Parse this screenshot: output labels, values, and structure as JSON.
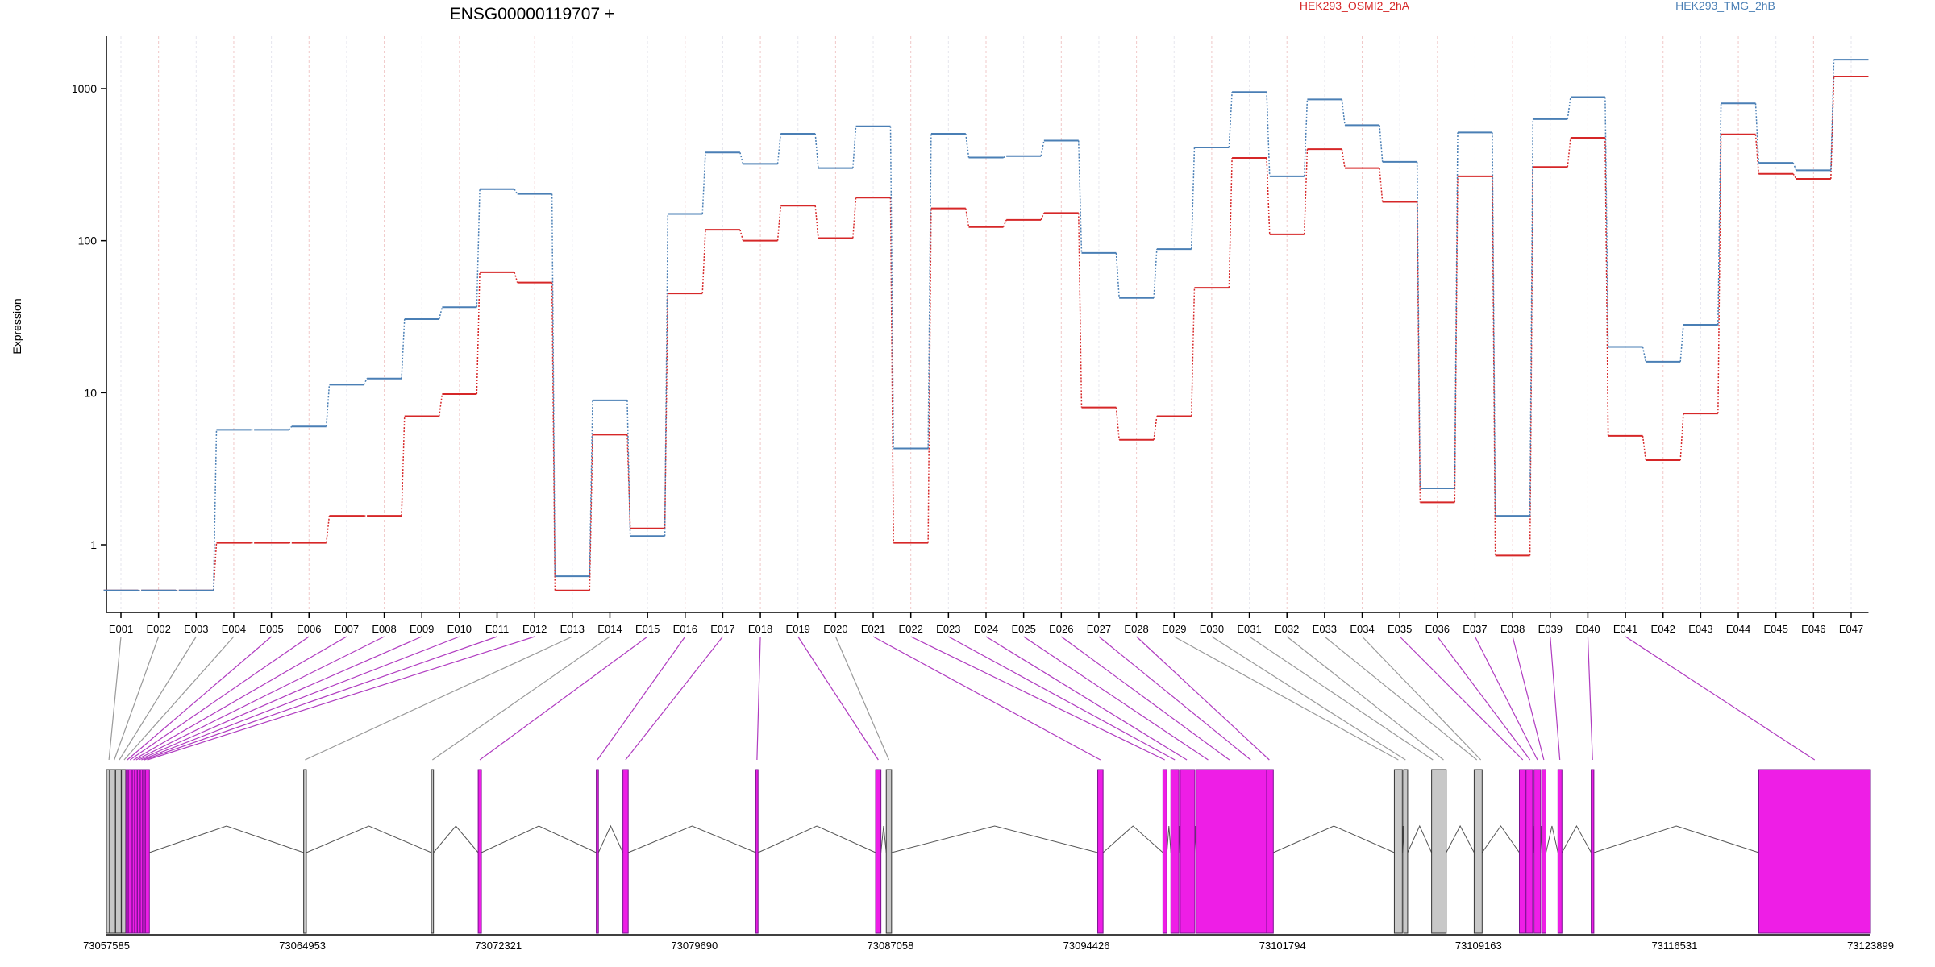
{
  "chart_data": {
    "type": "line",
    "title": "ENSG00000119707 +",
    "ylabel": "Expression",
    "yscale": "log",
    "ylim": [
      0.35,
      2200
    ],
    "y_ticks": [
      1,
      10,
      100,
      1000
    ],
    "y_tick_labels": [
      "1",
      "10",
      "100",
      "1000"
    ],
    "legend_placement": "top",
    "categories": [
      "E001",
      "E002",
      "E003",
      "E004",
      "E005",
      "E006",
      "E007",
      "E008",
      "E009",
      "E010",
      "E011",
      "E012",
      "E013",
      "E014",
      "E015",
      "E016",
      "E017",
      "E018",
      "E019",
      "E020",
      "E021",
      "E022",
      "E023",
      "E024",
      "E025",
      "E026",
      "E027",
      "E028",
      "E029",
      "E030",
      "E031",
      "E032",
      "E033",
      "E034",
      "E035",
      "E036",
      "E037",
      "E038",
      "E039",
      "E040",
      "E041",
      "E042",
      "E043",
      "E044",
      "E045",
      "E046",
      "E047"
    ],
    "series": [
      {
        "name": "HEK293_OSMI2_2hA",
        "color": "#d62728",
        "values": [
          0.5,
          0.5,
          0.5,
          1.03,
          1.03,
          1.03,
          1.55,
          1.55,
          7.0,
          9.8,
          62,
          53,
          0.5,
          5.3,
          1.28,
          45,
          118,
          100,
          170,
          104,
          192,
          1.03,
          163,
          123,
          137,
          152,
          8.0,
          4.9,
          7.0,
          49,
          350,
          110,
          400,
          300,
          180,
          1.9,
          265,
          0.85,
          305,
          475,
          5.2,
          3.6,
          7.3,
          500,
          275,
          255,
          1200
        ]
      },
      {
        "name": "HEK293_TMG_2hB",
        "color": "#4a7fb5",
        "values": [
          0.5,
          0.5,
          0.5,
          5.7,
          5.7,
          6.0,
          11.3,
          12.4,
          30.5,
          36.5,
          218,
          203,
          0.62,
          8.9,
          1.14,
          150,
          380,
          320,
          505,
          300,
          565,
          4.3,
          505,
          352,
          360,
          455,
          83,
          42,
          88,
          410,
          950,
          265,
          850,
          575,
          330,
          2.35,
          515,
          1.55,
          630,
          880,
          20,
          16,
          28,
          800,
          325,
          290,
          1550
        ]
      }
    ],
    "gene_model": {
      "coord_min": 73057585,
      "coord_max": 73123899,
      "coord_tick_labels": [
        "73057585",
        "73064953",
        "73072321",
        "73079690",
        "73087058",
        "73094426",
        "73101794",
        "73109163",
        "73116531",
        "73123899"
      ],
      "exon_fill_highlight": "#ee1ee6",
      "exon_fill_plain": "#c8c8c8",
      "exons": [
        {
          "start": 73057585,
          "end": 73057700,
          "hl": false
        },
        {
          "start": 73057710,
          "end": 73057920,
          "hl": false
        },
        {
          "start": 73057930,
          "end": 73058140,
          "hl": false
        },
        {
          "start": 73058150,
          "end": 73058310,
          "hl": false
        },
        {
          "start": 73058320,
          "end": 73058400,
          "hl": true
        },
        {
          "start": 73058410,
          "end": 73058550,
          "hl": true
        },
        {
          "start": 73058560,
          "end": 73058640,
          "hl": true
        },
        {
          "start": 73058650,
          "end": 73058740,
          "hl": true
        },
        {
          "start": 73058750,
          "end": 73058850,
          "hl": true
        },
        {
          "start": 73058860,
          "end": 73058940,
          "hl": true
        },
        {
          "start": 73058950,
          "end": 73059040,
          "hl": true
        },
        {
          "start": 73059050,
          "end": 73059200,
          "hl": true
        },
        {
          "start": 73065000,
          "end": 73065100,
          "hl": false
        },
        {
          "start": 73069800,
          "end": 73069880,
          "hl": false
        },
        {
          "start": 73071560,
          "end": 73071680,
          "hl": true
        },
        {
          "start": 73076000,
          "end": 73076080,
          "hl": true
        },
        {
          "start": 73077000,
          "end": 73077200,
          "hl": true
        },
        {
          "start": 73082000,
          "end": 73082080,
          "hl": true
        },
        {
          "start": 73086500,
          "end": 73086700,
          "hl": true
        },
        {
          "start": 73086900,
          "end": 73087100,
          "hl": false
        },
        {
          "start": 73094850,
          "end": 73095050,
          "hl": true
        },
        {
          "start": 73097300,
          "end": 73097450,
          "hl": true
        },
        {
          "start": 73097600,
          "end": 73097900,
          "hl": true
        },
        {
          "start": 73097950,
          "end": 73098500,
          "hl": true
        },
        {
          "start": 73098550,
          "end": 73101200,
          "hl": true
        },
        {
          "start": 73101200,
          "end": 73101450,
          "hl": true
        },
        {
          "start": 73106000,
          "end": 73106300,
          "hl": false
        },
        {
          "start": 73106350,
          "end": 73106500,
          "hl": false
        },
        {
          "start": 73107400,
          "end": 73107950,
          "hl": false
        },
        {
          "start": 73109000,
          "end": 73109300,
          "hl": false
        },
        {
          "start": 73110700,
          "end": 73110950,
          "hl": true
        },
        {
          "start": 73110950,
          "end": 73111200,
          "hl": true
        },
        {
          "start": 73111250,
          "end": 73111500,
          "hl": true
        },
        {
          "start": 73111550,
          "end": 73111700,
          "hl": true
        },
        {
          "start": 73112150,
          "end": 73112300,
          "hl": true
        },
        {
          "start": 73113400,
          "end": 73113500,
          "hl": true
        },
        {
          "start": 73119700,
          "end": 73123899,
          "hl": true
        }
      ],
      "exon_links": [
        [
          0,
          73057680
        ],
        [
          1,
          73057880
        ],
        [
          2,
          73058070
        ],
        [
          3,
          73058250
        ],
        [
          4,
          73058370
        ],
        [
          5,
          73058470
        ],
        [
          6,
          73058600
        ],
        [
          7,
          73058700
        ],
        [
          8,
          73058800
        ],
        [
          9,
          73058900
        ],
        [
          10,
          73059000
        ],
        [
          11,
          73059120
        ],
        [
          12,
          73065050
        ],
        [
          13,
          73069840
        ],
        [
          14,
          73071620
        ],
        [
          15,
          73076040
        ],
        [
          16,
          73077100
        ],
        [
          17,
          73082040
        ],
        [
          18,
          73086600
        ],
        [
          19,
          73087000
        ],
        [
          20,
          73094950
        ],
        [
          21,
          73097370
        ],
        [
          22,
          73097750
        ],
        [
          23,
          73098200
        ],
        [
          24,
          73099000
        ],
        [
          25,
          73099800
        ],
        [
          26,
          73100600
        ],
        [
          27,
          73101300
        ],
        [
          28,
          73106150
        ],
        [
          29,
          73106420
        ],
        [
          30,
          73107450
        ],
        [
          31,
          73107850
        ],
        [
          32,
          73109100
        ],
        [
          33,
          73109250
        ],
        [
          34,
          73110830
        ],
        [
          35,
          73111100
        ],
        [
          36,
          73111380
        ],
        [
          37,
          73111620
        ],
        [
          38,
          73112220
        ],
        [
          39,
          73113450
        ],
        [
          40,
          73121800
        ]
      ]
    }
  }
}
